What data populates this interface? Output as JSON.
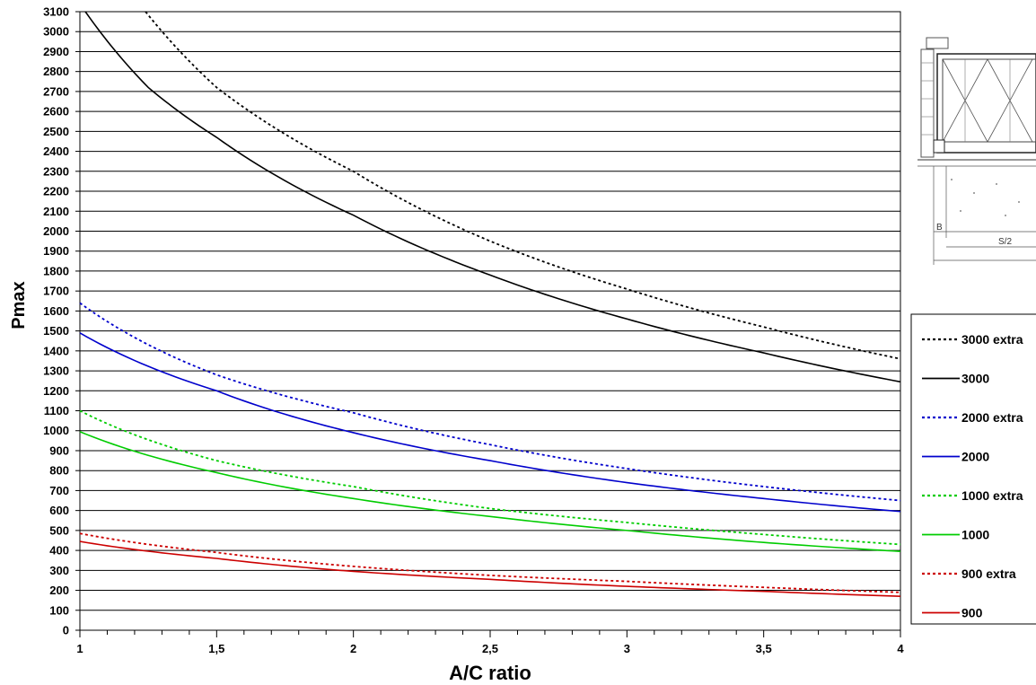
{
  "chart_data": {
    "type": "line",
    "title": "",
    "xlabel": "A/C ratio",
    "ylabel": "Pmax",
    "xlim": [
      1,
      4
    ],
    "ylim": [
      0,
      3100
    ],
    "x_ticks": [
      "1",
      "1,5",
      "2",
      "2,5",
      "3",
      "3,5",
      "4"
    ],
    "y_tick_step": 100,
    "grid": "horizontal every 100",
    "legend_position": "right",
    "series": [
      {
        "name": "3000 extra",
        "color": "#000000",
        "style": "dotted",
        "x": [
          1.24,
          1.5,
          2,
          2.5,
          3,
          3.5,
          4
        ],
        "y": [
          3100,
          2720,
          2300,
          1950,
          1710,
          1520,
          1360
        ]
      },
      {
        "name": "3000",
        "color": "#000000",
        "style": "solid",
        "x": [
          1.02,
          1.25,
          1.5,
          2,
          2.5,
          3,
          3.5,
          4
        ],
        "y": [
          3100,
          2720,
          2470,
          2080,
          1780,
          1560,
          1390,
          1245
        ]
      },
      {
        "name": "2000 extra",
        "color": "#0000cc",
        "style": "dotted",
        "x": [
          1,
          1.5,
          2,
          2.5,
          3,
          3.5,
          4
        ],
        "y": [
          1640,
          1280,
          1090,
          930,
          810,
          720,
          650
        ]
      },
      {
        "name": "2000",
        "color": "#0000cc",
        "style": "solid",
        "x": [
          1,
          1.5,
          2,
          2.5,
          3,
          3.5,
          4
        ],
        "y": [
          1490,
          1200,
          990,
          850,
          740,
          660,
          595
        ]
      },
      {
        "name": "1000 extra",
        "color": "#00cc00",
        "style": "dotted",
        "x": [
          1,
          1.5,
          2,
          2.5,
          3,
          3.5,
          4
        ],
        "y": [
          1100,
          850,
          720,
          610,
          540,
          480,
          430
        ]
      },
      {
        "name": "1000",
        "color": "#00cc00",
        "style": "solid",
        "x": [
          1,
          1.5,
          2,
          2.5,
          3,
          3.5,
          4
        ],
        "y": [
          995,
          790,
          660,
          570,
          500,
          440,
          395
        ]
      },
      {
        "name": "900 extra",
        "color": "#cc0000",
        "style": "dotted",
        "x": [
          1,
          1.5,
          2,
          2.5,
          3,
          3.5,
          4
        ],
        "y": [
          485,
          390,
          320,
          275,
          245,
          215,
          190
        ]
      },
      {
        "name": "900",
        "color": "#cc0000",
        "style": "solid",
        "x": [
          1,
          1.5,
          2,
          2.5,
          3,
          3.5,
          4
        ],
        "y": [
          445,
          360,
          295,
          255,
          220,
          195,
          170
        ]
      }
    ]
  },
  "drawing": {
    "label_b": "B",
    "label_s2": "S/2"
  }
}
